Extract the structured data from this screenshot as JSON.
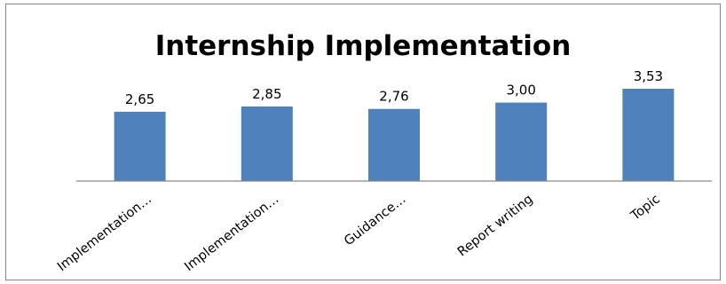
{
  "chart_data": {
    "type": "bar",
    "title": "Internship Implementation",
    "categories": [
      "Implementation…",
      "Implementation…",
      "Guidance…",
      "Report writing",
      "Topic"
    ],
    "values": [
      2.65,
      2.85,
      2.76,
      3.0,
      3.53
    ],
    "data_labels": [
      "2,65",
      "2,85",
      "2,76",
      "3,00",
      "3,53"
    ],
    "xlabel": "",
    "ylabel": "",
    "ylim": [
      0,
      3.53
    ],
    "grid": false,
    "legend": "none",
    "colors": {
      "bar": "#4F81BD",
      "axis": "#868686",
      "border": "#868686"
    }
  }
}
